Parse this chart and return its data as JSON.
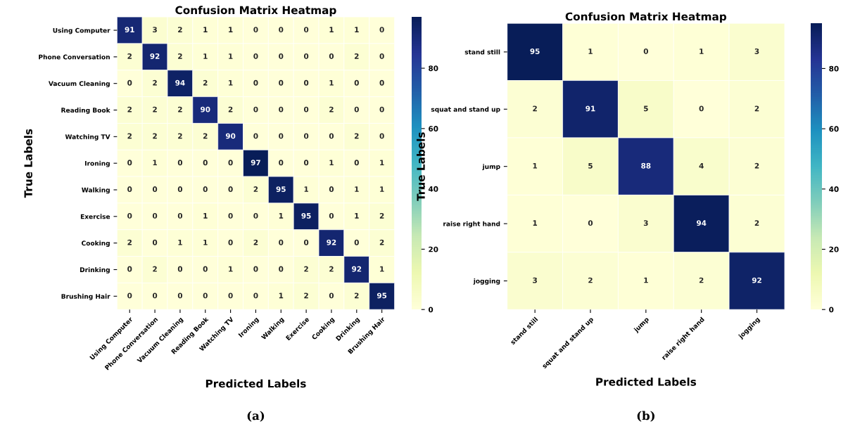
{
  "chart_data": [
    {
      "type": "heatmap",
      "title": "Confusion Matrix Heatmap",
      "xlabel": "Predicted Labels",
      "ylabel": "True Labels",
      "categories": [
        "Using Computer",
        "Phone Conversation",
        "Vacuum Cleaning",
        "Reading Book",
        "Watching TV",
        "Ironing",
        "Walking",
        "Exercise",
        "Cooking",
        "Drinking",
        "Brushing Hair"
      ],
      "y_categories": [
        "Using Computer",
        "Phone Conversation",
        "Vacuum Cleaning",
        "Reading Book",
        "Watching TV",
        "Ironing",
        "Walking",
        "Exercise",
        "Cooking",
        "Drinking",
        "Brushing Hair"
      ],
      "cells": [
        [
          91,
          3,
          2,
          1,
          1,
          0,
          0,
          0,
          1,
          1,
          0
        ],
        [
          2,
          92,
          2,
          1,
          1,
          0,
          0,
          0,
          0,
          2,
          0
        ],
        [
          0,
          2,
          94,
          2,
          1,
          0,
          0,
          0,
          1,
          0,
          0
        ],
        [
          2,
          2,
          2,
          90,
          2,
          0,
          0,
          0,
          2,
          0,
          0
        ],
        [
          2,
          2,
          2,
          2,
          90,
          0,
          0,
          0,
          0,
          2,
          0
        ],
        [
          0,
          1,
          0,
          0,
          0,
          97,
          0,
          0,
          1,
          0,
          1
        ],
        [
          0,
          0,
          0,
          0,
          0,
          2,
          95,
          1,
          0,
          1,
          1
        ],
        [
          0,
          0,
          0,
          1,
          0,
          0,
          1,
          95,
          0,
          1,
          2
        ],
        [
          2,
          0,
          1,
          1,
          0,
          2,
          0,
          0,
          92,
          0,
          2
        ],
        [
          0,
          2,
          0,
          0,
          1,
          0,
          0,
          2,
          2,
          92,
          1
        ],
        [
          0,
          0,
          0,
          0,
          0,
          0,
          1,
          2,
          0,
          2,
          95
        ]
      ],
      "clim": [
        0,
        97
      ],
      "cticks": [
        0,
        20,
        40,
        60,
        80
      ],
      "data_labels": true,
      "annotations": [
        "(a)"
      ]
    },
    {
      "type": "heatmap",
      "title": "Confusion Matrix Heatmap",
      "xlabel": "Predicted Labels",
      "ylabel": "True Labels",
      "categories": [
        "stand still",
        "squat and stand up",
        "jump",
        "raise right hand",
        "jogging"
      ],
      "y_categories": [
        "stand still",
        "squat and stand up",
        "jump",
        "raise right hand",
        "jogging"
      ],
      "cells": [
        [
          95,
          1,
          0,
          1,
          3
        ],
        [
          2,
          91,
          5,
          0,
          2
        ],
        [
          1,
          5,
          88,
          4,
          2
        ],
        [
          1,
          0,
          3,
          94,
          2
        ],
        [
          3,
          2,
          1,
          2,
          92
        ]
      ],
      "clim": [
        0,
        95
      ],
      "cticks": [
        0,
        20,
        40,
        60,
        80
      ],
      "data_labels": true,
      "annotations": [
        "(b)"
      ]
    }
  ]
}
